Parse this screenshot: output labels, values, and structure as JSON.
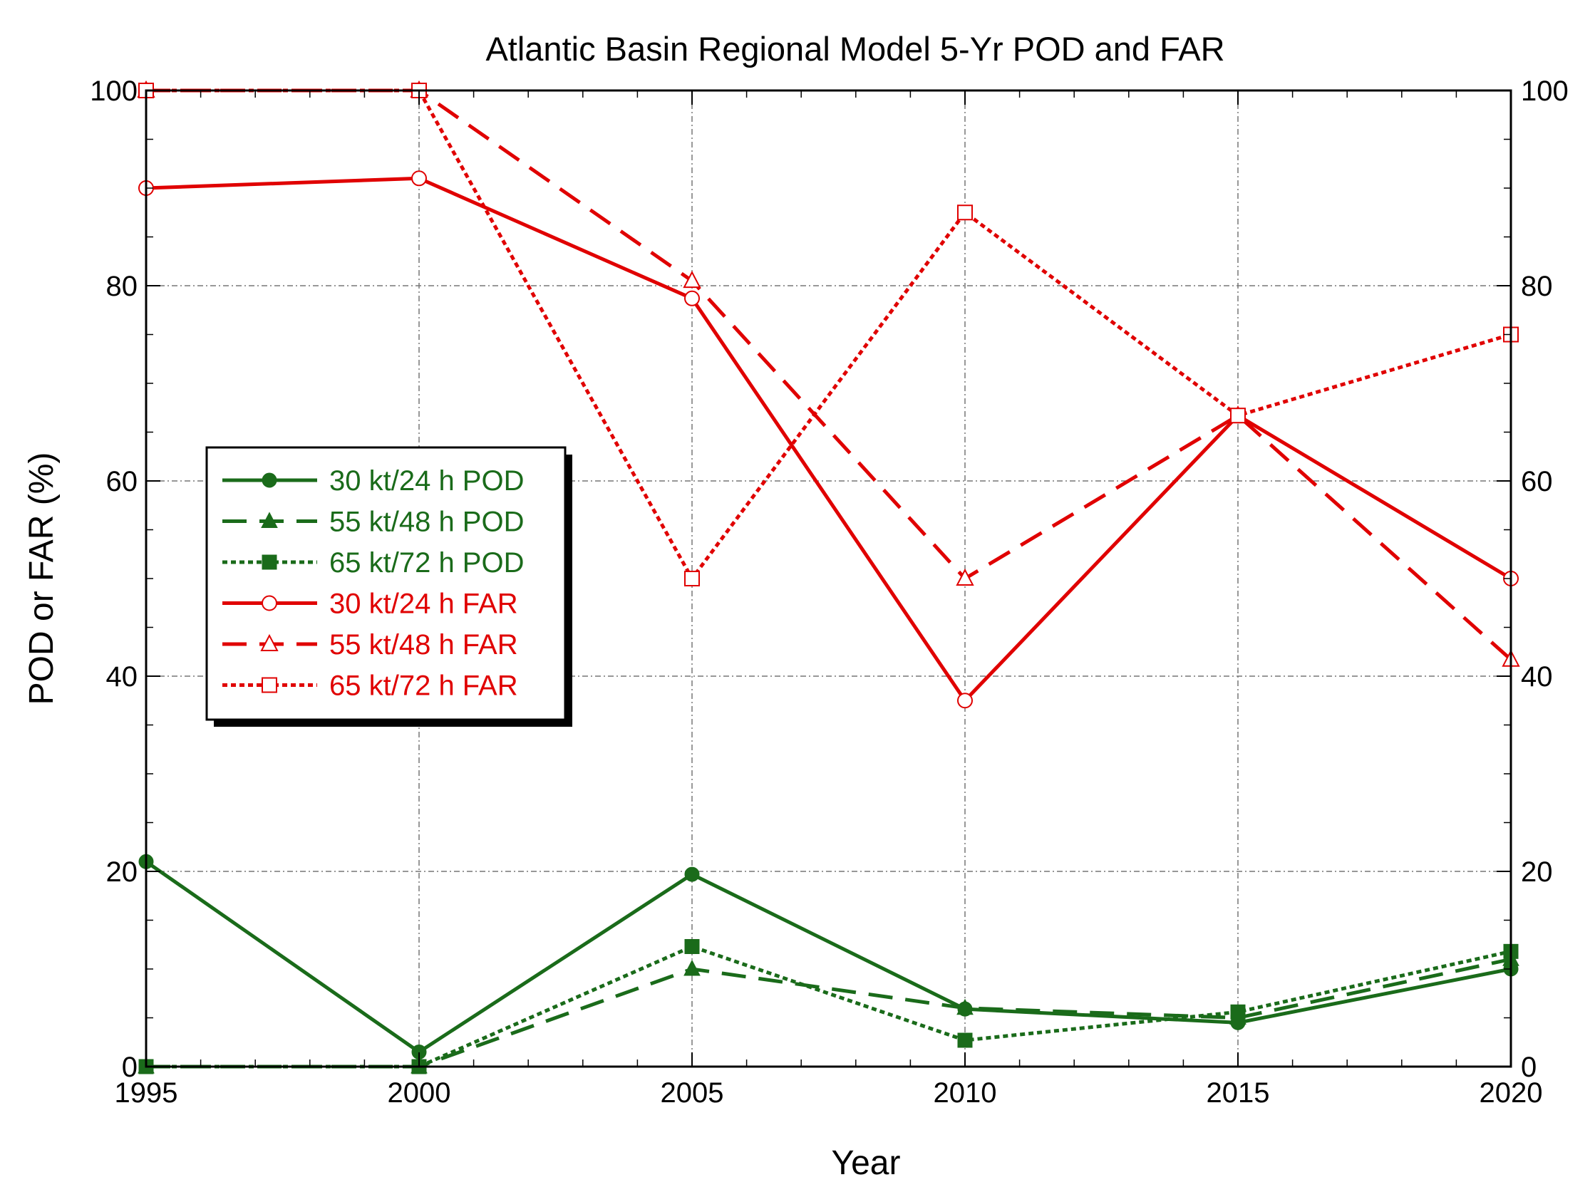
{
  "chart_data": {
    "type": "line",
    "title": "Atlantic Basin Regional Model 5-Yr POD and FAR",
    "xlabel": "Year",
    "ylabel": "POD or FAR (%)",
    "x": [
      1995,
      2000,
      2005,
      2010,
      2015,
      2020
    ],
    "xlim": [
      1995,
      2020
    ],
    "ylim": [
      0,
      100
    ],
    "x_ticks": [
      "1995",
      "2000",
      "2005",
      "2010",
      "2015",
      "2020"
    ],
    "y_ticks_left": [
      "0",
      "20",
      "40",
      "60",
      "80",
      "100"
    ],
    "y_ticks_right": [
      "0",
      "20",
      "40",
      "60",
      "80",
      "100"
    ],
    "grid": true,
    "legend_position": "center-left",
    "series": [
      {
        "name": "30 kt/24 h POD",
        "color": "#1a6b1a",
        "dash": "solid",
        "marker": "filled-circle",
        "values": [
          21,
          1.5,
          19.7,
          5.9,
          4.5,
          10
        ]
      },
      {
        "name": "55 kt/48 h POD",
        "color": "#1a6b1a",
        "dash": "dashed",
        "marker": "filled-triangle",
        "values": [
          0,
          0,
          10,
          6,
          5,
          11
        ]
      },
      {
        "name": "65 kt/72 h POD",
        "color": "#1a6b1a",
        "dash": "dotted",
        "marker": "filled-square",
        "values": [
          0,
          0,
          12.3,
          2.7,
          5.6,
          11.8
        ]
      },
      {
        "name": "30 kt/24 h FAR",
        "color": "#e00000",
        "dash": "solid",
        "marker": "open-circle",
        "values": [
          90,
          91,
          78.7,
          37.5,
          66.7,
          50
        ]
      },
      {
        "name": "55 kt/48 h FAR",
        "color": "#e00000",
        "dash": "dashed",
        "marker": "open-triangle",
        "values": [
          100,
          100,
          80.5,
          50,
          66.7,
          41.7
        ]
      },
      {
        "name": "65 kt/72 h FAR",
        "color": "#e00000",
        "dash": "dotted",
        "marker": "open-square",
        "values": [
          100,
          100,
          50,
          87.5,
          66.7,
          75
        ]
      }
    ]
  }
}
